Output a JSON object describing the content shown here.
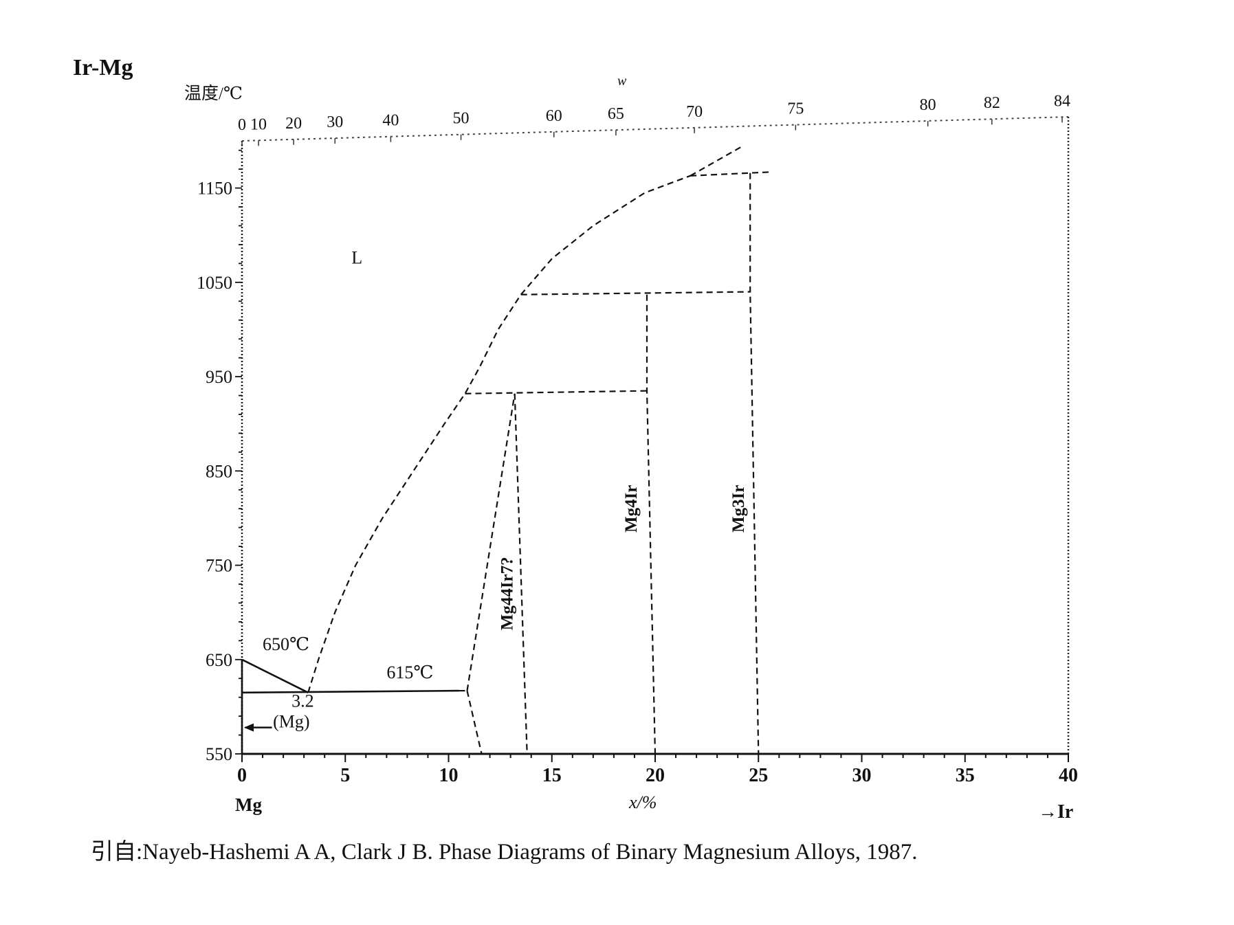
{
  "page": {
    "diagram_title": "Ir-Mg",
    "citation": "引自:Nayeb-Hashemi A A, Clark J B. Phase Diagrams of Binary Magnesium Alloys, 1987."
  },
  "chart_data": {
    "type": "phase-diagram",
    "title": "Ir-Mg",
    "xlabel": "x/%",
    "ylabel": "温度/℃",
    "top_axis_label": "w",
    "x_left_element": "Mg",
    "x_right_element": "→Ir",
    "xlim": [
      0,
      40
    ],
    "ylim": [
      550,
      1200
    ],
    "x_ticks": [
      0,
      5,
      10,
      15,
      20,
      25,
      30,
      35,
      40
    ],
    "y_ticks": [
      550,
      650,
      750,
      850,
      950,
      1050,
      1150
    ],
    "top_ticks": [
      {
        "label": "0",
        "x": 0
      },
      {
        "label": "10",
        "x": 0.8
      },
      {
        "label": "20",
        "x": 2.5
      },
      {
        "label": "30",
        "x": 4.5
      },
      {
        "label": "40",
        "x": 7.2
      },
      {
        "label": "50",
        "x": 10.6
      },
      {
        "label": "60",
        "x": 15.1
      },
      {
        "label": "65",
        "x": 18.1
      },
      {
        "label": "70",
        "x": 21.9
      },
      {
        "label": "75",
        "x": 26.8
      },
      {
        "label": "80",
        "x": 33.2
      },
      {
        "label": "82",
        "x": 36.3
      },
      {
        "label": "84",
        "x": 39.7
      }
    ],
    "phase_labels": [
      {
        "text": "L",
        "x": 5.3,
        "y": 1070,
        "rotate": false
      },
      {
        "text": "650℃",
        "x": 1.0,
        "y": 660,
        "rotate": false
      },
      {
        "text": "615℃",
        "x": 7.0,
        "y": 630,
        "rotate": false
      },
      {
        "text": "3.2",
        "x": 2.4,
        "y": 600,
        "rotate": false
      },
      {
        "text": "(Mg)",
        "x": 1.5,
        "y": 578,
        "rotate": false
      },
      {
        "text": "Mg44Ir7?",
        "x": 13.1,
        "y": 720,
        "rotate": true
      },
      {
        "text": "Mg4Ir",
        "x": 19.1,
        "y": 810,
        "rotate": true
      },
      {
        "text": "Mg3Ir",
        "x": 24.3,
        "y": 810,
        "rotate": true
      }
    ],
    "lines": [
      {
        "name": "liquidus",
        "style": "dashed",
        "points": [
          [
            3.2,
            615
          ],
          [
            3.7,
            650
          ],
          [
            4.5,
            700
          ],
          [
            5.5,
            750
          ],
          [
            6.8,
            800
          ],
          [
            8.3,
            850
          ],
          [
            9.8,
            900
          ],
          [
            10.8,
            932
          ],
          [
            11.5,
            960
          ],
          [
            12.4,
            1000
          ],
          [
            13.5,
            1037
          ],
          [
            15.0,
            1075
          ],
          [
            17.0,
            1110
          ],
          [
            19.5,
            1145
          ],
          [
            21.7,
            1163
          ]
        ]
      },
      {
        "name": "liquidus-upper",
        "style": "dashed",
        "points": [
          [
            21.7,
            1163
          ],
          [
            24.2,
            1194
          ]
        ]
      },
      {
        "name": "mg-liquidus",
        "style": "solid",
        "points": [
          [
            0,
            650
          ],
          [
            3.2,
            615
          ]
        ]
      },
      {
        "name": "eutectic-615",
        "style": "solid",
        "points": [
          [
            0,
            615
          ],
          [
            10.5,
            617
          ]
        ]
      },
      {
        "name": "eutectic-615-end",
        "style": "dashed",
        "points": [
          [
            10.5,
            617
          ],
          [
            10.9,
            617
          ]
        ]
      },
      {
        "name": "mg44ir7-left",
        "style": "dashed",
        "points": [
          [
            10.9,
            617
          ],
          [
            11.6,
            550
          ]
        ]
      },
      {
        "name": "mg44ir7-peritectic",
        "style": "dashed",
        "points": [
          [
            10.9,
            617
          ],
          [
            13.2,
            932
          ]
        ]
      },
      {
        "name": "mg44ir7-right",
        "style": "dashed",
        "points": [
          [
            13.2,
            932
          ],
          [
            13.8,
            550
          ]
        ]
      },
      {
        "name": "peritectic-932",
        "style": "dashed",
        "points": [
          [
            10.8,
            932
          ],
          [
            19.6,
            935
          ]
        ]
      },
      {
        "name": "mg4ir-line",
        "style": "dashed",
        "points": [
          [
            19.6,
            1037
          ],
          [
            19.6,
            935
          ],
          [
            20.0,
            550
          ]
        ]
      },
      {
        "name": "peritectic-1037",
        "style": "dashed",
        "points": [
          [
            13.5,
            1037
          ],
          [
            24.6,
            1040
          ]
        ]
      },
      {
        "name": "mg3ir-line",
        "style": "dashed",
        "points": [
          [
            24.6,
            1166
          ],
          [
            24.6,
            1040
          ],
          [
            25.0,
            550
          ]
        ]
      },
      {
        "name": "peritectic-1166",
        "style": "dashed",
        "points": [
          [
            21.7,
            1163
          ],
          [
            25.6,
            1167
          ]
        ]
      },
      {
        "name": "mg-solvus",
        "style": "solid",
        "points": [
          [
            0,
            650
          ],
          [
            0,
            550
          ]
        ]
      }
    ]
  }
}
